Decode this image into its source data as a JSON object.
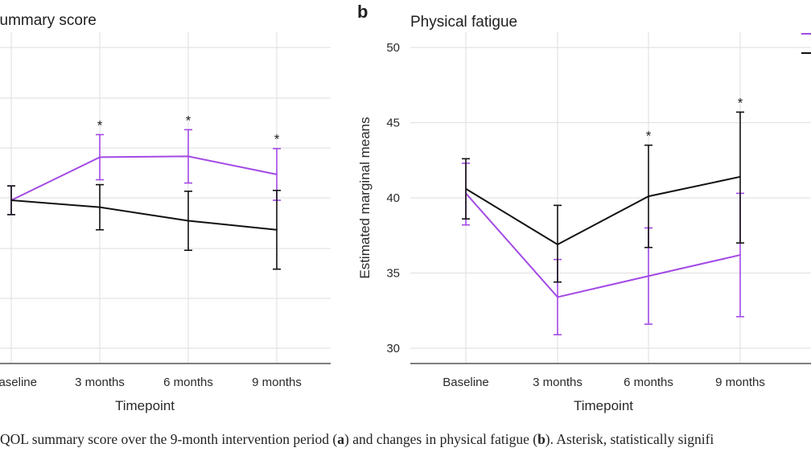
{
  "caption": {
    "prefix": "QOL summary score over the 9-month intervention period (",
    "panel_a": "a",
    "middle": ") and changes in physical fatigue (",
    "panel_b": "b",
    "suffix": "). Asterisk, statistically signifi"
  },
  "colors": {
    "intervention": "#a349e6",
    "control": "#111111",
    "grid": "#e3e3e3"
  },
  "chart_data": [
    {
      "panel": "",
      "type": "line",
      "title": "summary score",
      "categories": [
        "aseline",
        "3 months",
        "6 months",
        "9 months"
      ],
      "xlabel": "Timepoint",
      "ylabel": "",
      "series": [
        {
          "color": "#a349e6",
          "values": [
            0.0,
            1.05,
            1.07,
            0.63
          ],
          "lower": [
            -0.35,
            0.5,
            0.42,
            0.0
          ],
          "upper": [
            0.35,
            1.6,
            1.72,
            1.26
          ]
        },
        {
          "color": "#111111",
          "values": [
            0.0,
            -0.17,
            -0.5,
            -0.72
          ],
          "lower": [
            -0.35,
            -0.72,
            -1.22,
            -1.68
          ],
          "upper": [
            0.35,
            0.38,
            0.22,
            0.24
          ]
        }
      ],
      "significant": [
        "3 months",
        "6 months",
        "9 months"
      ],
      "grid": true
    },
    {
      "panel": "b",
      "type": "line",
      "title": "Physical fatigue",
      "categories": [
        "Baseline",
        "3 months",
        "6 months",
        "9 months"
      ],
      "xlabel": "Timepoint",
      "ylabel": "Estimated marginal means",
      "yticks": [
        30,
        35,
        40,
        45,
        50
      ],
      "ylim": [
        29.0,
        51.0
      ],
      "series": [
        {
          "color": "#a349e6",
          "values": [
            40.3,
            33.4,
            34.8,
            36.2
          ],
          "lower": [
            38.2,
            30.9,
            31.6,
            32.1
          ],
          "upper": [
            42.3,
            35.9,
            38.0,
            40.3
          ]
        },
        {
          "color": "#111111",
          "values": [
            40.6,
            36.9,
            40.1,
            41.4
          ],
          "lower": [
            38.6,
            34.4,
            36.7,
            37.0
          ],
          "upper": [
            42.6,
            39.5,
            43.5,
            45.7
          ]
        }
      ],
      "significant": [
        "6 months",
        "9 months"
      ],
      "grid": true
    }
  ]
}
